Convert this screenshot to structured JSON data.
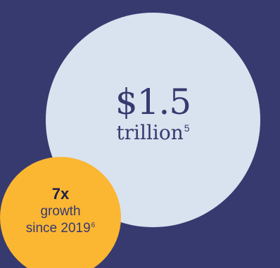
{
  "colors": {
    "background": "#363a6f",
    "primary_circle": "#d8e3ef",
    "secondary_circle": "#fbb632",
    "text": "#363a6f"
  },
  "primary_stat": {
    "value": "$1.5",
    "unit": "trillion",
    "footnote": "5"
  },
  "secondary_stat": {
    "value": "7x",
    "line1": "growth",
    "line2": "since 2019",
    "footnote": "6"
  }
}
